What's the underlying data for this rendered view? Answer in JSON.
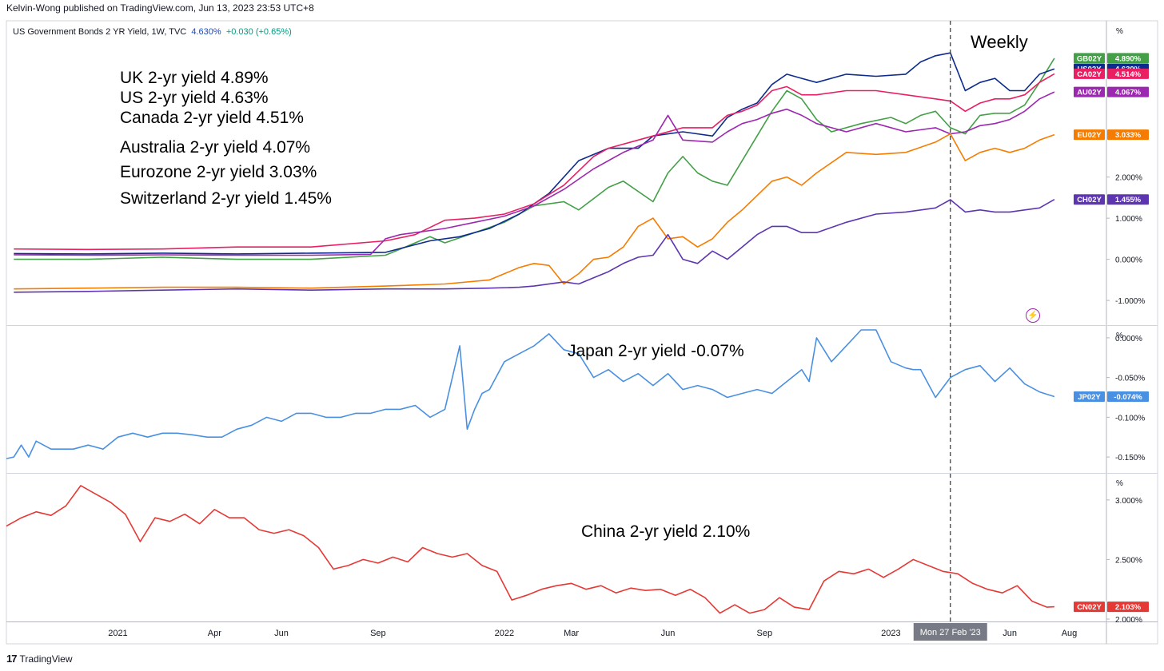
{
  "header": {
    "published": "Kelvin-Wong published on TradingView.com, Jun 13, 2023 23:53 UTC+8",
    "symbol": "US Government Bonds 2 YR Yield, 1W, TVC",
    "last": "4.630%",
    "change": "+0.030 (+0.65%)",
    "timeframe_label": "Weekly"
  },
  "footer": {
    "logo_text": "TradingView"
  },
  "crosshair": {
    "date_label": "Mon 27 Feb '23"
  },
  "chart_data": {
    "type": "line",
    "x_axis": {
      "labels": [
        "2021",
        "Apr",
        "Jun",
        "Sep",
        "2022",
        "Mar",
        "Jun",
        "Sep",
        "2023",
        "Jun",
        "Aug"
      ],
      "label_weeks": [
        4,
        17,
        26,
        39,
        56,
        65,
        78,
        91,
        108,
        124,
        132
      ],
      "range_weeks": [
        -11,
        137
      ],
      "crosshair_week": 116,
      "start_week_date": "2020-09-28"
    },
    "panes": [
      {
        "name": "main",
        "unit_label": "%",
        "ylim": [
          -1.6,
          5.8
        ],
        "ticks": [
          {
            "value": 2.0,
            "label": "2.000%"
          },
          {
            "value": 1.0,
            "label": "1.000%"
          },
          {
            "value": 0.0,
            "label": "0.000%"
          },
          {
            "value": -1.0,
            "label": "-1.000%"
          }
        ],
        "series": [
          {
            "code": "GB02Y",
            "last": "4.890%",
            "color": "#43a047",
            "annotation": "UK 2-yr yield 4.89%",
            "x": [
              -10,
              0,
              10,
              20,
              30,
              40,
              46,
              48,
              52,
              56,
              60,
              64,
              66,
              70,
              72,
              76,
              78,
              80,
              82,
              84,
              86,
              88,
              90,
              92,
              94,
              96,
              98,
              100,
              104,
              108,
              110,
              112,
              114,
              116,
              118,
              120,
              122,
              124,
              126,
              128,
              130
            ],
            "y": [
              0.0,
              0.0,
              0.05,
              0.0,
              0.0,
              0.1,
              0.55,
              0.4,
              0.65,
              0.9,
              1.3,
              1.4,
              1.2,
              1.75,
              1.9,
              1.4,
              2.1,
              2.5,
              2.1,
              1.9,
              1.8,
              2.4,
              3.0,
              3.6,
              4.1,
              3.9,
              3.4,
              3.1,
              3.3,
              3.45,
              3.3,
              3.5,
              3.6,
              3.2,
              3.05,
              3.5,
              3.55,
              3.55,
              3.75,
              4.3,
              4.89
            ]
          },
          {
            "code": "US02Y",
            "last": "4.630%",
            "color": "#0d2b8c",
            "annotation": "US 2-yr yield 4.63%",
            "x": [
              -10,
              0,
              10,
              20,
              30,
              40,
              46,
              50,
              54,
              58,
              62,
              66,
              70,
              74,
              76,
              80,
              84,
              86,
              88,
              90,
              92,
              94,
              96,
              98,
              102,
              106,
              110,
              112,
              114,
              116,
              118,
              120,
              122,
              124,
              126,
              128,
              130
            ],
            "y": [
              0.14,
              0.13,
              0.15,
              0.13,
              0.15,
              0.17,
              0.45,
              0.55,
              0.75,
              1.1,
              1.6,
              2.4,
              2.7,
              2.7,
              3.0,
              3.1,
              3.0,
              3.45,
              3.65,
              3.8,
              4.25,
              4.5,
              4.4,
              4.3,
              4.5,
              4.45,
              4.5,
              4.8,
              4.95,
              5.02,
              4.1,
              4.3,
              4.4,
              4.1,
              4.1,
              4.5,
              4.63
            ]
          },
          {
            "code": "CA02Y",
            "last": "4.514%",
            "color": "#e91e63",
            "annotation": "Canada 2-yr yield 4.51%",
            "x": [
              -10,
              0,
              10,
              20,
              30,
              40,
              44,
              48,
              52,
              56,
              60,
              64,
              68,
              70,
              74,
              76,
              80,
              84,
              86,
              88,
              90,
              92,
              94,
              96,
              98,
              102,
              106,
              110,
              114,
              116,
              118,
              120,
              122,
              124,
              126,
              128,
              130
            ],
            "y": [
              0.25,
              0.24,
              0.25,
              0.3,
              0.3,
              0.45,
              0.6,
              0.95,
              1.0,
              1.1,
              1.35,
              1.8,
              2.5,
              2.7,
              2.9,
              3.0,
              3.2,
              3.2,
              3.5,
              3.6,
              3.75,
              4.1,
              4.2,
              4.0,
              4.0,
              4.1,
              4.1,
              4.0,
              3.9,
              3.85,
              3.6,
              3.8,
              3.9,
              3.9,
              4.0,
              4.3,
              4.51
            ]
          },
          {
            "code": "AU02Y",
            "last": "4.067%",
            "color": "#9c27b0",
            "annotation": "Australia  2-yr yield 4.07%",
            "x": [
              -10,
              0,
              10,
              20,
              30,
              38,
              40,
              42,
              44,
              48,
              52,
              56,
              60,
              64,
              68,
              72,
              76,
              78,
              80,
              84,
              86,
              88,
              90,
              92,
              94,
              96,
              98,
              102,
              106,
              110,
              114,
              116,
              118,
              120,
              122,
              124,
              126,
              128,
              130
            ],
            "y": [
              0.11,
              0.1,
              0.11,
              0.1,
              0.1,
              0.12,
              0.5,
              0.6,
              0.65,
              0.75,
              0.9,
              1.05,
              1.3,
              1.7,
              2.2,
              2.6,
              2.9,
              3.5,
              2.9,
              2.85,
              3.1,
              3.3,
              3.4,
              3.55,
              3.65,
              3.5,
              3.3,
              3.1,
              3.3,
              3.1,
              3.2,
              3.05,
              3.1,
              3.25,
              3.3,
              3.4,
              3.6,
              3.9,
              4.07
            ]
          },
          {
            "code": "EU02Y",
            "last": "3.033%",
            "color": "#f57c00",
            "annotation": "Eurozone  2-yr yield 3.03%",
            "x": [
              -10,
              0,
              10,
              20,
              30,
              40,
              48,
              54,
              58,
              60,
              62,
              64,
              66,
              68,
              70,
              72,
              74,
              76,
              78,
              80,
              82,
              84,
              86,
              88,
              90,
              92,
              94,
              96,
              98,
              102,
              106,
              110,
              114,
              116,
              118,
              120,
              122,
              124,
              126,
              128,
              130
            ],
            "y": [
              -0.72,
              -0.7,
              -0.68,
              -0.68,
              -0.7,
              -0.65,
              -0.6,
              -0.5,
              -0.2,
              -0.1,
              -0.15,
              -0.6,
              -0.35,
              0.0,
              0.05,
              0.3,
              0.8,
              1.0,
              0.5,
              0.55,
              0.3,
              0.5,
              0.9,
              1.2,
              1.55,
              1.9,
              2.0,
              1.8,
              2.1,
              2.6,
              2.55,
              2.6,
              2.85,
              3.05,
              2.4,
              2.6,
              2.7,
              2.6,
              2.7,
              2.9,
              3.03
            ]
          },
          {
            "code": "CH02Y",
            "last": "1.455%",
            "color": "#5e35b1",
            "annotation": "Switzerland  2-yr yield 1.45%",
            "x": [
              -10,
              0,
              10,
              20,
              30,
              40,
              48,
              54,
              58,
              60,
              64,
              66,
              68,
              70,
              72,
              74,
              76,
              78,
              80,
              82,
              84,
              86,
              88,
              90,
              92,
              94,
              96,
              98,
              102,
              106,
              110,
              114,
              116,
              118,
              120,
              122,
              124,
              126,
              128,
              130
            ],
            "y": [
              -0.8,
              -0.78,
              -0.75,
              -0.72,
              -0.75,
              -0.72,
              -0.72,
              -0.7,
              -0.68,
              -0.65,
              -0.55,
              -0.6,
              -0.45,
              -0.3,
              -0.1,
              0.05,
              0.1,
              0.6,
              0.0,
              -0.1,
              0.2,
              0.0,
              0.3,
              0.6,
              0.8,
              0.8,
              0.65,
              0.65,
              0.9,
              1.1,
              1.15,
              1.25,
              1.45,
              1.15,
              1.2,
              1.15,
              1.15,
              1.2,
              1.25,
              1.455
            ]
          }
        ]
      },
      {
        "name": "japan",
        "unit_label": "%",
        "ylim": [
          -0.17,
          0.015
        ],
        "ticks": [
          {
            "value": 0.0,
            "label": "0.000%"
          },
          {
            "value": -0.05,
            "label": "-0.050%"
          },
          {
            "value": -0.1,
            "label": "-0.100%"
          },
          {
            "value": -0.15,
            "label": "-0.150%"
          }
        ],
        "series": [
          {
            "code": "JP02Y",
            "last": "-0.074%",
            "color": "#4a90e2",
            "annotation": "Japan 2-yr yield -0.07%",
            "x": [
              -11,
              -10,
              -9,
              -8,
              -7,
              -5,
              -2,
              0,
              2,
              4,
              6,
              8,
              10,
              12,
              14,
              16,
              18,
              20,
              22,
              24,
              26,
              28,
              30,
              32,
              34,
              36,
              38,
              40,
              42,
              44,
              46,
              48,
              50,
              51,
              52,
              53,
              54,
              56,
              58,
              60,
              62,
              64,
              66,
              68,
              70,
              72,
              74,
              76,
              78,
              80,
              82,
              84,
              86,
              88,
              90,
              92,
              94,
              96,
              97,
              98,
              100,
              102,
              104,
              106,
              108,
              110,
              111,
              112,
              114,
              116,
              118,
              120,
              122,
              124,
              126,
              128,
              130
            ],
            "y": [
              -0.152,
              -0.15,
              -0.135,
              -0.15,
              -0.13,
              -0.14,
              -0.14,
              -0.135,
              -0.14,
              -0.125,
              -0.12,
              -0.125,
              -0.12,
              -0.12,
              -0.122,
              -0.125,
              -0.125,
              -0.115,
              -0.11,
              -0.1,
              -0.105,
              -0.095,
              -0.095,
              -0.1,
              -0.1,
              -0.095,
              -0.095,
              -0.09,
              -0.09,
              -0.085,
              -0.1,
              -0.09,
              -0.01,
              -0.115,
              -0.09,
              -0.07,
              -0.065,
              -0.03,
              -0.02,
              -0.01,
              0.005,
              -0.015,
              -0.02,
              -0.05,
              -0.04,
              -0.055,
              -0.045,
              -0.06,
              -0.045,
              -0.065,
              -0.06,
              -0.065,
              -0.075,
              -0.07,
              -0.065,
              -0.07,
              -0.055,
              -0.04,
              -0.055,
              0.0,
              -0.03,
              -0.01,
              0.01,
              0.01,
              -0.03,
              -0.038,
              -0.04,
              -0.04,
              -0.075,
              -0.05,
              -0.04,
              -0.035,
              -0.055,
              -0.038,
              -0.058,
              -0.068,
              -0.074
            ]
          }
        ]
      },
      {
        "name": "china",
        "unit_label": "%",
        "ylim": [
          1.98,
          3.22
        ],
        "ticks": [
          {
            "value": 3.0,
            "label": "3.000%"
          },
          {
            "value": 2.5,
            "label": "2.500%"
          },
          {
            "value": 2.0,
            "label": "2.000%"
          }
        ],
        "series": [
          {
            "code": "CN02Y",
            "last": "2.103%",
            "color": "#e53935",
            "annotation": "China 2-yr yield 2.10%",
            "x": [
              -11,
              -9,
              -7,
              -5,
              -3,
              -1,
              1,
              3,
              5,
              7,
              9,
              11,
              13,
              15,
              17,
              19,
              21,
              23,
              25,
              27,
              29,
              31,
              33,
              35,
              37,
              39,
              41,
              43,
              45,
              47,
              49,
              51,
              53,
              55,
              57,
              59,
              61,
              63,
              65,
              67,
              69,
              71,
              73,
              75,
              77,
              79,
              81,
              83,
              85,
              87,
              89,
              91,
              93,
              95,
              97,
              99,
              101,
              103,
              105,
              107,
              109,
              111,
              113,
              115,
              117,
              119,
              121,
              123,
              125,
              127,
              129,
              130
            ],
            "y": [
              2.78,
              2.85,
              2.9,
              2.87,
              2.95,
              3.12,
              3.05,
              2.98,
              2.88,
              2.65,
              2.85,
              2.82,
              2.88,
              2.8,
              2.92,
              2.85,
              2.85,
              2.75,
              2.72,
              2.75,
              2.7,
              2.6,
              2.42,
              2.45,
              2.5,
              2.47,
              2.52,
              2.48,
              2.6,
              2.55,
              2.52,
              2.55,
              2.45,
              2.4,
              2.16,
              2.2,
              2.25,
              2.28,
              2.3,
              2.25,
              2.28,
              2.22,
              2.26,
              2.24,
              2.25,
              2.2,
              2.25,
              2.18,
              2.05,
              2.12,
              2.05,
              2.08,
              2.18,
              2.1,
              2.08,
              2.32,
              2.4,
              2.38,
              2.42,
              2.35,
              2.42,
              2.5,
              2.45,
              2.4,
              2.38,
              2.3,
              2.25,
              2.22,
              2.28,
              2.15,
              2.1,
              2.103
            ]
          }
        ]
      }
    ]
  }
}
